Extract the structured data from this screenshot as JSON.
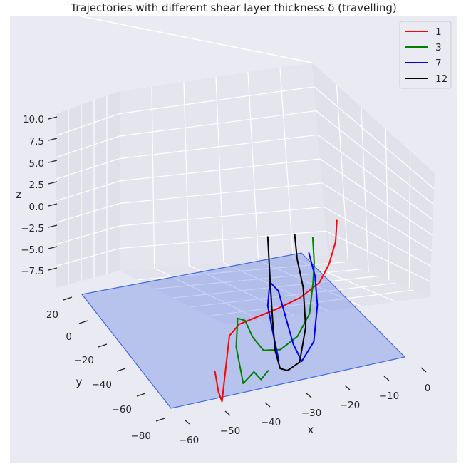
{
  "chart_data": {
    "type": "line",
    "title": "Trajectories with different shear layer thickness δ (travelling)",
    "xlabel": "x",
    "ylabel": "y",
    "zlabel": "z",
    "x_ticks": [
      "−60",
      "−50",
      "−40",
      "−30",
      "−20",
      "−10",
      "0"
    ],
    "y_ticks": [
      "−80",
      "−60",
      "−40",
      "−20",
      "0",
      "20"
    ],
    "z_ticks": [
      "10.0",
      "7.5",
      "5.0",
      "2.5",
      "0.0",
      "−2.5",
      "−5.0",
      "−7.5"
    ],
    "xlim": [
      -63,
      2
    ],
    "ylim": [
      -85,
      25
    ],
    "zlim": [
      -10,
      11
    ],
    "grid": true,
    "legend_position": "top-right",
    "plane": {
      "z": -10,
      "color": "#4169e1"
    },
    "series": [
      {
        "name": "1",
        "color": "#ff0000",
        "points": [
          [
            -55,
            5,
            -6.9
          ],
          [
            -54,
            5,
            -9
          ],
          [
            -53,
            5,
            -10
          ],
          [
            -52,
            4,
            -8
          ],
          [
            -50,
            2,
            -4
          ],
          [
            -46,
            -2,
            -3.4
          ],
          [
            -40,
            -8,
            -3.6
          ],
          [
            -32,
            -14,
            -3.7
          ],
          [
            -24,
            -18,
            -3.4
          ],
          [
            -18,
            -20,
            -2.5
          ],
          [
            -15,
            -21,
            -1
          ],
          [
            -13,
            -21.5,
            1
          ],
          [
            -12.5,
            -22,
            3
          ]
        ]
      },
      {
        "name": "3",
        "color": "#008000",
        "points": [
          [
            -40,
            5,
            -8
          ],
          [
            -42,
            5,
            -8.7
          ],
          [
            -44,
            5,
            -7.8
          ],
          [
            -47,
            5,
            -8.7
          ],
          [
            -49,
            5,
            -5
          ],
          [
            -48,
            3,
            -2.4
          ],
          [
            -45,
            0,
            -3
          ],
          [
            -42,
            -3,
            -5
          ],
          [
            -38,
            -6,
            -6.8
          ],
          [
            -32,
            -10,
            -7.4
          ],
          [
            -26,
            -14,
            -6.8
          ],
          [
            -22,
            -16,
            -5
          ],
          [
            -21,
            -16,
            -2
          ],
          [
            -21,
            -15,
            0
          ],
          [
            -22,
            -13,
            2.6
          ]
        ]
      },
      {
        "name": "7",
        "color": "#0000ff",
        "points": [
          [
            -34,
            -5,
            -8
          ],
          [
            -36,
            -4,
            -5
          ],
          [
            -38,
            -2,
            -2.2
          ],
          [
            -38,
            0,
            0.2
          ],
          [
            -35,
            -2,
            -1
          ],
          [
            -32,
            -5,
            -4
          ],
          [
            -29,
            -8,
            -7
          ],
          [
            -26,
            -10,
            -9
          ],
          [
            -22,
            -12,
            -7.5
          ],
          [
            -21,
            -12,
            -4
          ],
          [
            -22,
            -11,
            -1
          ],
          [
            -24,
            -10,
            1.4
          ]
        ]
      },
      {
        "name": "12",
        "color": "#000000",
        "points": [
          [
            -38,
            -2,
            4.5
          ],
          [
            -37,
            -3,
            0
          ],
          [
            -36,
            -4,
            -4
          ],
          [
            -35,
            -5,
            -7
          ],
          [
            -33,
            -7,
            -9
          ],
          [
            -30,
            -10,
            -9.6
          ],
          [
            -26,
            -12,
            -9.2
          ],
          [
            -24,
            -13,
            -6
          ],
          [
            -25,
            -12,
            -2
          ],
          [
            -27,
            -11,
            1
          ],
          [
            -28,
            -10,
            3.5
          ]
        ]
      }
    ]
  }
}
